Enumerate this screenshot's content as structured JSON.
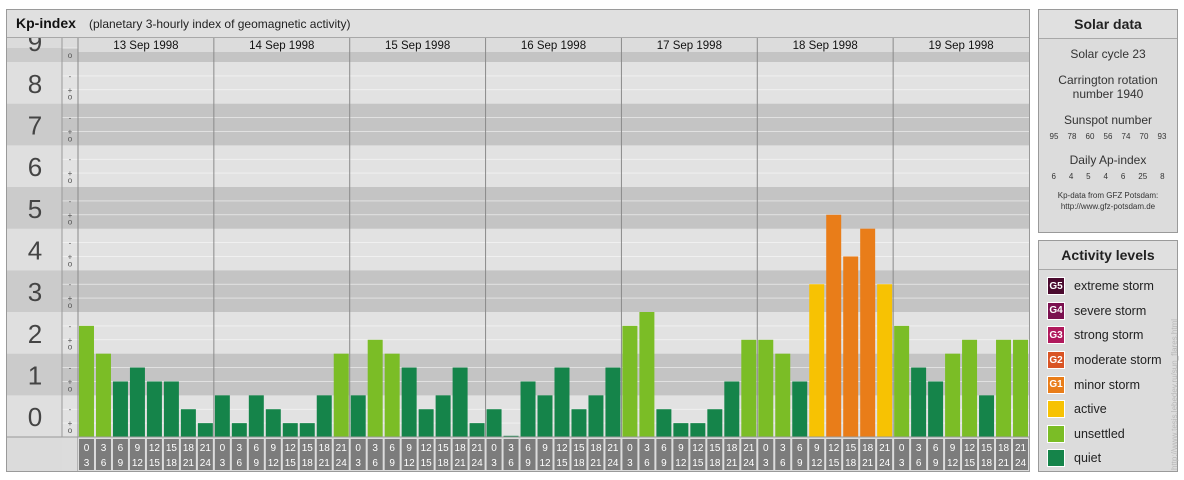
{
  "chart": {
    "title": "Kp-index",
    "subtitle": "(planetary 3-hourly index of geomagnetic activity)"
  },
  "chart_data": {
    "type": "bar",
    "title": "Kp-index",
    "subtitle": "(planetary 3-hourly index of geomagnetic activity)",
    "ylim": [
      0,
      9
    ],
    "y_ticks": [
      "0",
      "1",
      "2",
      "3",
      "4",
      "5",
      "6",
      "7",
      "8",
      "9"
    ],
    "minor_ticks": [
      "o",
      "+",
      "-"
    ],
    "days": [
      "13 Sep 1998",
      "14 Sep 1998",
      "15 Sep 1998",
      "16 Sep 1998",
      "17 Sep 1998",
      "18 Sep 1998",
      "19 Sep 1998"
    ],
    "hour_labels_top": [
      "0",
      "3",
      "6",
      "9",
      "12",
      "15",
      "18",
      "21"
    ],
    "hour_labels_bottom": [
      "3",
      "6",
      "9",
      "12",
      "15",
      "18",
      "21",
      "24"
    ],
    "values": [
      [
        2.667,
        2.0,
        1.333,
        1.667,
        1.333,
        1.333,
        0.667,
        0.333
      ],
      [
        1.0,
        0.333,
        1.0,
        0.667,
        0.333,
        0.333,
        1.0,
        2.0
      ],
      [
        1.0,
        2.333,
        2.0,
        1.667,
        0.667,
        1.0,
        1.667,
        0.333
      ],
      [
        0.667,
        0.0,
        1.333,
        1.0,
        1.667,
        0.667,
        1.0,
        1.667
      ],
      [
        2.667,
        3.0,
        0.667,
        0.333,
        0.333,
        0.667,
        1.333,
        2.333
      ],
      [
        2.333,
        2.0,
        1.333,
        3.667,
        5.333,
        4.333,
        5.0,
        3.667
      ],
      [
        2.667,
        1.667,
        1.333,
        2.0,
        2.333,
        1.0,
        2.333,
        2.333
      ]
    ],
    "colors": {
      "quiet": "#15844a",
      "unsettled": "#7bbd26",
      "active": "#f7c203",
      "minor_storm": "#e97d19",
      "moderate_storm": "#d95424",
      "strong_storm": "#b0195c",
      "severe_storm": "#7b1150",
      "extreme_storm": "#4a0a2e"
    }
  },
  "solar": {
    "title": "Solar data",
    "cycle": "Solar cycle 23",
    "carrington_1": "Carrington rotation",
    "carrington_2": "number 1940",
    "sunspot_title": "Sunspot number",
    "sunspots": [
      "95",
      "78",
      "60",
      "56",
      "74",
      "70",
      "93"
    ],
    "ap_title": "Daily Ap-index",
    "ap": [
      "6",
      "4",
      "5",
      "4",
      "6",
      "25",
      "8"
    ],
    "source_1": "Kp-data from GFZ Potsdam:",
    "source_2": "http://www.gfz-potsdam.de"
  },
  "activity": {
    "title": "Activity levels",
    "items": [
      {
        "code": "G5",
        "label": "extreme storm",
        "color": "#4a0a2e"
      },
      {
        "code": "G4",
        "label": "severe storm",
        "color": "#7b1150"
      },
      {
        "code": "G3",
        "label": "strong storm",
        "color": "#b0195c"
      },
      {
        "code": "G2",
        "label": "moderate storm",
        "color": "#d95424"
      },
      {
        "code": "G1",
        "label": "minor storm",
        "color": "#e97d19"
      },
      {
        "code": "",
        "label": "active",
        "color": "#f7c203"
      },
      {
        "code": "",
        "label": "unsettled",
        "color": "#7bbd26"
      },
      {
        "code": "",
        "label": "quiet",
        "color": "#15844a"
      }
    ]
  },
  "credit": "http://www.tesis.lebedev.ru/sun_flares.html"
}
